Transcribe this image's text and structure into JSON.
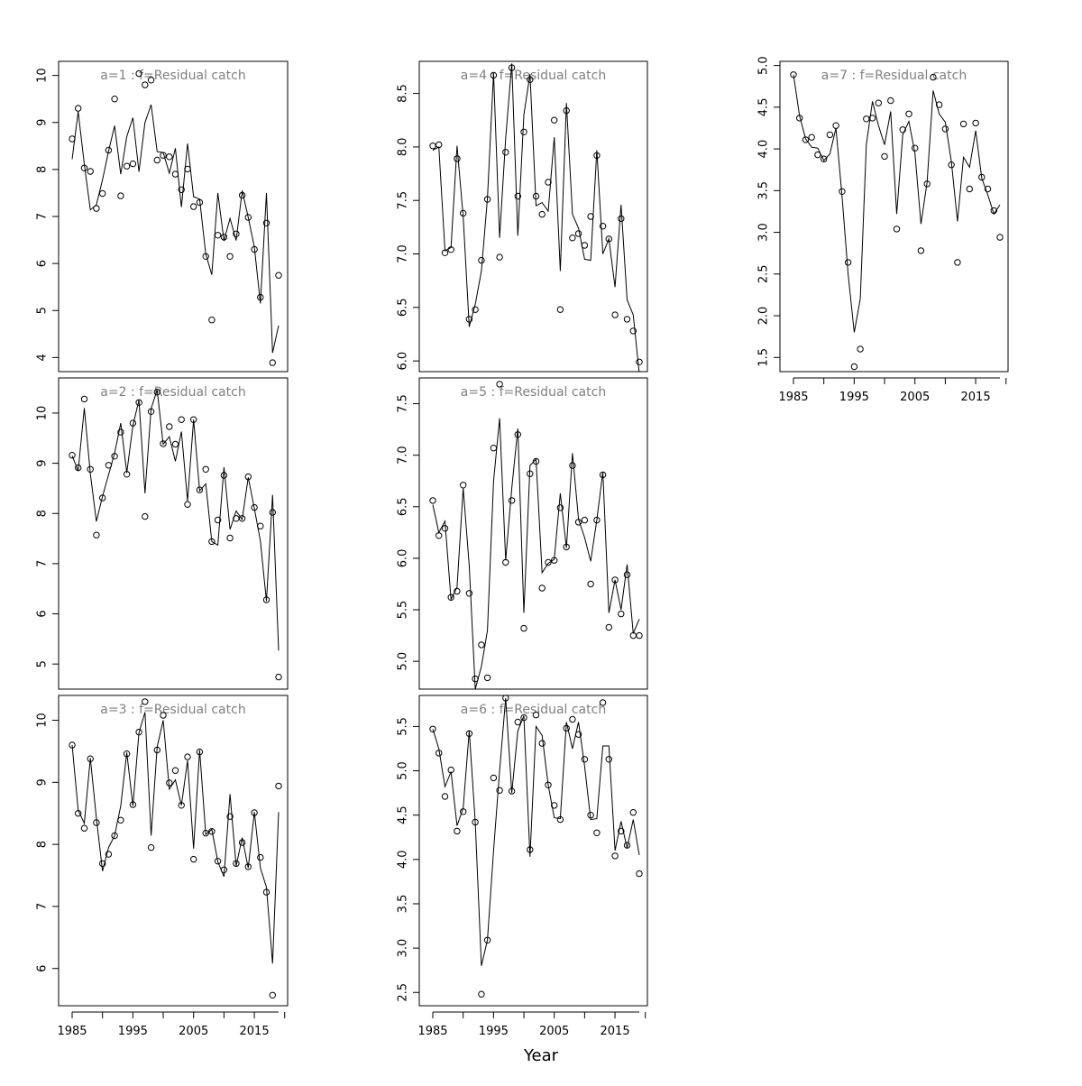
{
  "figure": {
    "xlabel": "Year",
    "colors": {
      "frame": "#000000",
      "line": "#000000",
      "title": "#808080",
      "background": "#ffffff"
    }
  },
  "chart_data": [
    {
      "type": "line",
      "title": "a=1  :  f=Residual catch",
      "xlim": [
        1984,
        2020
      ],
      "ylim": [
        3.7,
        10.3
      ],
      "yticks": [
        4,
        5,
        6,
        7,
        8,
        9,
        10
      ],
      "xticks": [],
      "x": [
        1985,
        1986,
        1987,
        1988,
        1989,
        1990,
        1991,
        1992,
        1993,
        1994,
        1995,
        1996,
        1997,
        1998,
        1999,
        2000,
        2001,
        2002,
        2003,
        2004,
        2005,
        2006,
        2007,
        2008,
        2009,
        2010,
        2011,
        2012,
        2013,
        2014,
        2015,
        2016,
        2017,
        2018,
        2019
      ],
      "series": [
        {
          "kind": "points",
          "values": [
            8.65,
            9.3,
            8.03,
            7.96,
            7.17,
            7.49,
            8.41,
            9.5,
            7.44,
            8.07,
            8.12,
            10.04,
            9.8,
            9.9,
            8.2,
            8.3,
            8.27,
            7.9,
            7.57,
            8.01,
            7.21,
            7.3,
            6.15,
            4.8,
            6.6,
            6.56,
            6.15,
            6.63,
            7.45,
            6.98,
            6.3,
            5.28,
            6.86,
            3.89,
            5.75
          ]
        },
        {
          "kind": "line",
          "values": [
            8.22,
            9.23,
            8.11,
            7.14,
            7.25,
            7.78,
            8.39,
            8.93,
            7.9,
            8.7,
            9.1,
            7.95,
            9.0,
            9.38,
            8.38,
            8.36,
            7.92,
            8.45,
            7.2,
            8.55,
            7.42,
            7.37,
            6.2,
            5.76,
            7.5,
            6.48,
            6.96,
            6.49,
            7.55,
            6.98,
            6.35,
            5.15,
            7.5,
            4.1,
            4.68
          ]
        }
      ]
    },
    {
      "type": "line",
      "title": "a=2  :  f=Residual catch",
      "xlim": [
        1984,
        2020
      ],
      "ylim": [
        4.5,
        10.7
      ],
      "yticks": [
        5,
        6,
        7,
        8,
        9,
        10
      ],
      "xticks": [],
      "x": [
        1985,
        1986,
        1987,
        1988,
        1989,
        1990,
        1991,
        1992,
        1993,
        1994,
        1995,
        1996,
        1997,
        1998,
        1999,
        2000,
        2001,
        2002,
        2003,
        2004,
        2005,
        2006,
        2007,
        2008,
        2009,
        2010,
        2011,
        2012,
        2013,
        2014,
        2015,
        2016,
        2017,
        2018,
        2019
      ],
      "series": [
        {
          "kind": "points",
          "values": [
            9.16,
            8.91,
            10.28,
            8.88,
            7.57,
            8.31,
            8.96,
            9.14,
            9.62,
            8.78,
            9.8,
            10.21,
            7.94,
            10.03,
            10.42,
            9.39,
            9.73,
            9.38,
            9.87,
            8.18,
            9.87,
            8.47,
            8.88,
            7.44,
            7.87,
            8.76,
            7.51,
            7.9,
            7.9,
            8.73,
            8.12,
            7.75,
            6.28,
            8.02,
            4.74
          ]
        },
        {
          "kind": "line",
          "values": [
            9.15,
            8.85,
            10.1,
            8.79,
            7.84,
            8.34,
            8.77,
            9.2,
            9.8,
            8.81,
            9.75,
            10.26,
            8.4,
            10.09,
            10.46,
            9.38,
            9.53,
            9.04,
            9.63,
            8.25,
            9.87,
            8.45,
            8.59,
            7.44,
            7.37,
            8.92,
            7.68,
            8.05,
            7.88,
            8.72,
            8.1,
            7.45,
            6.25,
            8.37,
            5.27
          ]
        }
      ]
    },
    {
      "type": "line",
      "title": "a=3  :  f=Residual catch",
      "xlim": [
        1984,
        2020
      ],
      "ylim": [
        5.4,
        10.4
      ],
      "yticks": [
        6,
        7,
        8,
        9,
        10
      ],
      "xticks": [
        1985,
        1995,
        2005,
        2015
      ],
      "x": [
        1985,
        1986,
        1987,
        1988,
        1989,
        1990,
        1991,
        1992,
        1993,
        1994,
        1995,
        1996,
        1997,
        1998,
        1999,
        2000,
        2001,
        2002,
        2003,
        2004,
        2005,
        2006,
        2007,
        2008,
        2009,
        2010,
        2011,
        2012,
        2013,
        2014,
        2015,
        2016,
        2017,
        2018,
        2019
      ],
      "series": [
        {
          "kind": "points",
          "values": [
            9.6,
            8.5,
            8.26,
            9.38,
            8.35,
            7.69,
            7.84,
            8.14,
            8.39,
            9.46,
            8.64,
            9.81,
            10.3,
            7.95,
            9.52,
            10.08,
            8.99,
            9.19,
            8.63,
            9.41,
            7.76,
            9.49,
            8.18,
            8.21,
            7.73,
            7.59,
            8.45,
            7.69,
            8.03,
            7.64,
            8.51,
            7.79,
            7.23,
            5.57,
            8.94
          ]
        },
        {
          "kind": "line",
          "values": [
            9.6,
            8.55,
            8.34,
            9.39,
            8.42,
            7.57,
            7.95,
            8.14,
            8.62,
            9.48,
            8.62,
            9.8,
            10.13,
            8.14,
            9.57,
            10.0,
            8.89,
            9.04,
            8.63,
            9.35,
            7.93,
            9.52,
            8.16,
            8.24,
            7.72,
            7.48,
            8.81,
            7.65,
            8.11,
            7.62,
            8.52,
            7.62,
            7.31,
            6.08,
            8.52
          ]
        }
      ]
    },
    {
      "type": "line",
      "title": "a=4  :  f=Residual catch",
      "xlim": [
        1984,
        2020
      ],
      "ylim": [
        5.9,
        8.8
      ],
      "yticks": [
        6.0,
        6.5,
        7.0,
        7.5,
        8.0,
        8.5
      ],
      "xticks": [],
      "x": [
        1985,
        1986,
        1987,
        1988,
        1989,
        1990,
        1991,
        1992,
        1993,
        1994,
        1995,
        1996,
        1997,
        1998,
        1999,
        2000,
        2001,
        2002,
        2003,
        2004,
        2005,
        2006,
        2007,
        2008,
        2009,
        2010,
        2011,
        2012,
        2013,
        2014,
        2015,
        2016,
        2017,
        2018,
        2019
      ],
      "series": [
        {
          "kind": "points",
          "values": [
            8.01,
            8.02,
            7.01,
            7.04,
            7.89,
            7.38,
            6.39,
            6.48,
            6.94,
            7.51,
            8.67,
            6.97,
            7.95,
            8.74,
            7.54,
            8.14,
            8.63,
            7.54,
            7.37,
            7.67,
            8.25,
            6.48,
            8.34,
            7.15,
            7.19,
            7.08,
            7.35,
            7.92,
            7.26,
            7.14,
            6.43,
            7.33,
            6.39,
            6.28,
            5.99
          ]
        },
        {
          "kind": "line",
          "values": [
            7.97,
            8.0,
            7.03,
            7.06,
            8.01,
            7.35,
            6.32,
            6.53,
            6.84,
            7.52,
            8.69,
            7.15,
            8.08,
            8.78,
            7.17,
            8.3,
            8.68,
            7.45,
            7.48,
            7.4,
            8.09,
            6.84,
            8.41,
            7.37,
            7.24,
            6.95,
            6.94,
            7.97,
            7.0,
            7.14,
            6.69,
            7.46,
            6.57,
            6.43,
            5.88
          ]
        }
      ]
    },
    {
      "type": "line",
      "title": "a=5  :  f=Residual catch",
      "xlim": [
        1984,
        2020
      ],
      "ylim": [
        4.73,
        7.75
      ],
      "yticks": [
        5.0,
        5.5,
        6.0,
        6.5,
        7.0,
        7.5
      ],
      "xticks": [],
      "x": [
        1985,
        1986,
        1987,
        1988,
        1989,
        1990,
        1991,
        1992,
        1993,
        1994,
        1995,
        1996,
        1997,
        1998,
        1999,
        2000,
        2001,
        2002,
        2003,
        2004,
        2005,
        2006,
        2007,
        2008,
        2009,
        2010,
        2011,
        2012,
        2013,
        2014,
        2015,
        2016,
        2017,
        2018,
        2019
      ],
      "series": [
        {
          "kind": "points",
          "values": [
            6.56,
            6.22,
            6.29,
            5.62,
            5.68,
            6.71,
            5.66,
            4.83,
            5.16,
            4.84,
            7.07,
            7.69,
            5.96,
            6.56,
            7.2,
            5.32,
            6.82,
            6.94,
            5.71,
            5.96,
            5.98,
            6.49,
            6.11,
            6.9,
            6.35,
            6.37,
            5.75,
            6.37,
            6.81,
            5.33,
            5.79,
            5.46,
            5.84,
            5.25,
            5.25
          ]
        },
        {
          "kind": "line",
          "values": [
            6.52,
            6.25,
            6.36,
            5.6,
            5.72,
            6.68,
            5.93,
            4.73,
            4.95,
            5.3,
            6.75,
            7.36,
            5.98,
            6.68,
            7.26,
            5.47,
            6.9,
            6.96,
            5.86,
            5.95,
            5.99,
            6.63,
            6.1,
            7.02,
            6.38,
            6.2,
            5.97,
            6.37,
            6.84,
            5.47,
            5.79,
            5.5,
            5.94,
            5.27,
            5.41
          ]
        }
      ]
    },
    {
      "type": "line",
      "title": "a=6  :  f=Residual catch",
      "xlim": [
        1984,
        2020
      ],
      "ylim": [
        2.35,
        5.85
      ],
      "yticks": [
        2.5,
        3.0,
        3.5,
        4.0,
        4.5,
        5.0,
        5.5
      ],
      "xticks": [
        1985,
        1995,
        2005,
        2015
      ],
      "x": [
        1985,
        1986,
        1987,
        1988,
        1989,
        1990,
        1991,
        1992,
        1993,
        1994,
        1995,
        1996,
        1997,
        1998,
        1999,
        2000,
        2001,
        2002,
        2003,
        2004,
        2005,
        2006,
        2007,
        2008,
        2009,
        2010,
        2011,
        2012,
        2013,
        2014,
        2015,
        2016,
        2017,
        2018,
        2019
      ],
      "series": [
        {
          "kind": "points",
          "values": [
            5.47,
            5.2,
            4.71,
            5.01,
            4.32,
            4.54,
            5.42,
            4.42,
            2.48,
            3.09,
            4.92,
            4.78,
            5.82,
            4.77,
            5.55,
            5.6,
            4.11,
            5.63,
            5.31,
            4.84,
            4.61,
            4.45,
            5.48,
            5.58,
            5.41,
            5.13,
            4.5,
            4.3,
            5.77,
            5.13,
            4.04,
            4.32,
            4.16,
            4.53,
            3.84
          ]
        },
        {
          "kind": "line",
          "values": [
            5.47,
            5.25,
            4.82,
            4.99,
            4.38,
            4.58,
            5.45,
            4.42,
            2.8,
            3.09,
            4.1,
            5.0,
            5.82,
            4.75,
            5.45,
            5.62,
            4.03,
            5.5,
            5.4,
            4.84,
            4.47,
            4.46,
            5.55,
            5.25,
            5.55,
            5.05,
            4.45,
            4.46,
            5.28,
            5.28,
            4.1,
            4.43,
            4.13,
            4.45,
            4.05
          ]
        }
      ]
    },
    {
      "type": "line",
      "title": "a=7  :  f=Residual catch",
      "xlim": [
        1984,
        2020
      ],
      "ylim": [
        1.33,
        5.05
      ],
      "yticks": [
        1.5,
        2.0,
        2.5,
        3.0,
        3.5,
        4.0,
        4.5,
        5.0
      ],
      "xticks": [
        1985,
        1995,
        2005,
        2015
      ],
      "x": [
        1985,
        1986,
        1987,
        1988,
        1989,
        1990,
        1991,
        1992,
        1993,
        1994,
        1995,
        1996,
        1997,
        1998,
        1999,
        2000,
        2001,
        2002,
        2003,
        2004,
        2005,
        2006,
        2007,
        2008,
        2009,
        2010,
        2011,
        2012,
        2013,
        2014,
        2015,
        2016,
        2017,
        2018,
        2019
      ],
      "series": [
        {
          "kind": "points",
          "values": [
            4.89,
            4.37,
            4.11,
            4.14,
            3.93,
            3.88,
            4.17,
            4.28,
            3.49,
            2.64,
            1.39,
            1.6,
            4.36,
            4.37,
            4.55,
            3.91,
            4.58,
            3.04,
            4.23,
            4.42,
            4.01,
            2.78,
            3.58,
            4.86,
            4.53,
            4.24,
            3.81,
            2.64,
            4.3,
            3.52,
            4.31,
            3.66,
            3.52,
            3.26,
            2.94
          ]
        },
        {
          "kind": "line",
          "values": [
            4.89,
            4.4,
            4.12,
            4.02,
            4.01,
            3.86,
            3.94,
            4.25,
            3.43,
            2.5,
            1.8,
            2.2,
            4.05,
            4.57,
            4.28,
            4.05,
            4.45,
            3.22,
            4.17,
            4.33,
            3.95,
            3.1,
            3.6,
            4.7,
            4.42,
            4.32,
            3.85,
            3.13,
            3.9,
            3.78,
            4.22,
            3.65,
            3.45,
            3.22,
            3.33
          ]
        }
      ]
    }
  ]
}
